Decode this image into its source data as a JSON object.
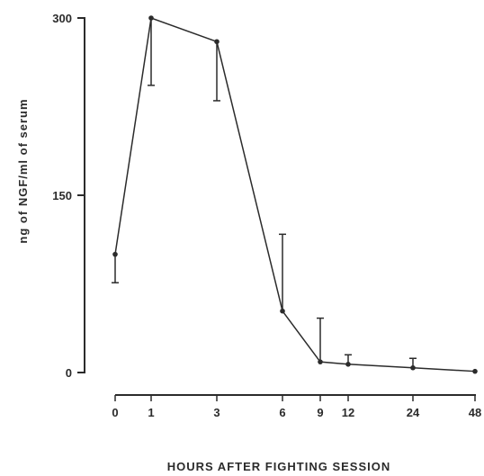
{
  "chart_data": {
    "type": "line",
    "title": "",
    "xlabel": "HOURS AFTER FIGHTING SESSION",
    "ylabel": "ng of NGF/ml of serum",
    "x_tick_labels": [
      "0",
      "1",
      "3",
      "6",
      "9",
      "12",
      "24",
      "48"
    ],
    "y_ticks": [
      0,
      150,
      300
    ],
    "y_tick_labels": [
      "0",
      "150",
      "300"
    ],
    "ylim": [
      0,
      300
    ],
    "grid": false,
    "series": [
      {
        "x": [
          "0",
          "1",
          "3",
          "6",
          "9",
          "12",
          "24",
          "48"
        ],
        "values": [
          100,
          300,
          280,
          52,
          9,
          7,
          4,
          1
        ],
        "error_lower": [
          76,
          243,
          230,
          null,
          null,
          null,
          null,
          null
        ],
        "error_upper": [
          null,
          null,
          null,
          117,
          46,
          15,
          12,
          null
        ]
      }
    ]
  },
  "colors": {
    "ink": "#2b2b2b",
    "background": "#ffffff"
  }
}
